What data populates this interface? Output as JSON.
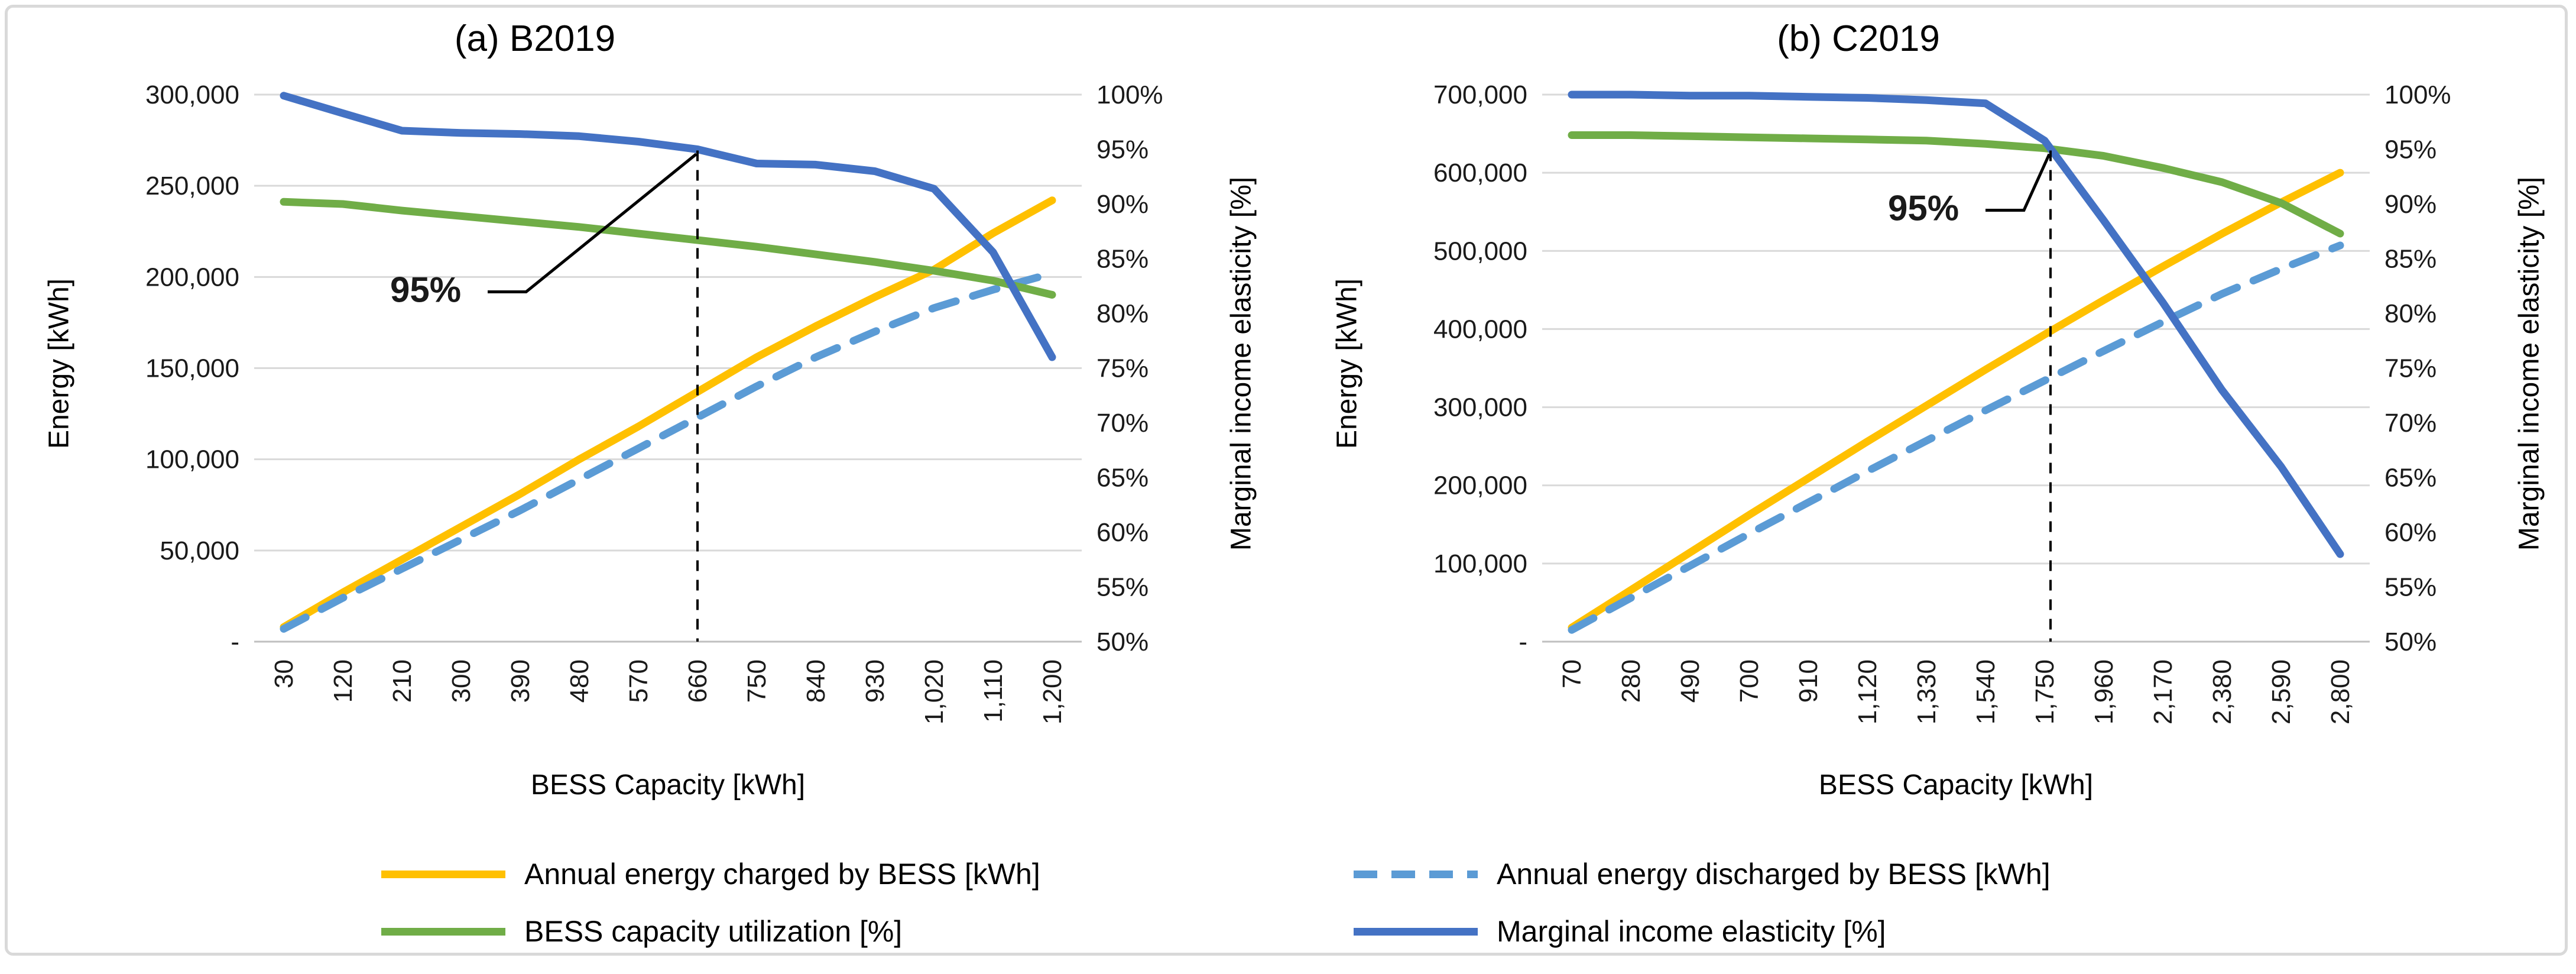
{
  "figure": {
    "background": "#FFFFFF",
    "border_color": "#D9D9D9",
    "gridline_color": "#D9D9D9",
    "axis_line_color": "#BFBFBF"
  },
  "legend": {
    "items": [
      {
        "label": "Annual energy charged by BESS [kWh]",
        "color": "#FFC000",
        "dash": false
      },
      {
        "label": "Annual energy discharged by BESS [kWh]",
        "color": "#5B9BD5",
        "dash": true
      },
      {
        "label": "BESS capacity utilization [%]",
        "color": "#70AD47",
        "dash": false
      },
      {
        "label": "Marginal income elasticity [%]",
        "color": "#4472C4",
        "dash": false
      }
    ]
  },
  "chart_data": [
    {
      "type": "line",
      "title": "(a) B2019",
      "xlabel": "BESS Capacity [kWh]",
      "ylabel_left": "Energy [kWh]",
      "ylabel_right": "Marginal income elasticity [%]",
      "x_categories": [
        30,
        120,
        210,
        300,
        390,
        480,
        570,
        660,
        750,
        840,
        930,
        1020,
        1110,
        1200
      ],
      "x_tick_labels": [
        "30",
        "120",
        "210",
        "300",
        "390",
        "480",
        "570",
        "660",
        "750",
        "840",
        "930",
        "1,020",
        "1,110",
        "1,200"
      ],
      "ylim_left": [
        0,
        300000
      ],
      "yticks_left": [
        "300,000",
        "250,000",
        "200,000",
        "150,000",
        "100,000",
        "50,000",
        "-"
      ],
      "ylim_right": [
        50,
        100
      ],
      "yticks_right": [
        "100%",
        "95%",
        "90%",
        "85%",
        "80%",
        "75%",
        "70%",
        "65%",
        "60%",
        "55%",
        "50%"
      ],
      "grid": true,
      "legend_position": "bottom-shared",
      "series": [
        {
          "name": "Annual energy charged by BESS [kWh]",
          "axis": "left",
          "color": "#FFC000",
          "dash": false,
          "values": [
            8000,
            27000,
            45000,
            63000,
            81000,
            100000,
            118000,
            137000,
            156000,
            173000,
            189000,
            204000,
            224000,
            242000
          ]
        },
        {
          "name": "Annual energy discharged by BESS [kWh]",
          "axis": "left",
          "color": "#5B9BD5",
          "dash": true,
          "values": [
            7000,
            24000,
            40000,
            56000,
            72000,
            89000,
            106000,
            123000,
            140000,
            156000,
            170000,
            183000,
            193000,
            202000
          ]
        },
        {
          "name": "BESS capacity utilization [%]",
          "axis": "right",
          "color": "#70AD47",
          "dash": false,
          "values": [
            90.2,
            90.0,
            89.4,
            88.9,
            88.4,
            87.9,
            87.3,
            86.7,
            86.1,
            85.4,
            84.7,
            83.9,
            83.0,
            81.7
          ]
        },
        {
          "name": "Marginal income elasticity [%]",
          "axis": "right",
          "color": "#4472C4",
          "dash": false,
          "values": [
            99.9,
            98.3,
            96.7,
            96.5,
            96.4,
            96.2,
            95.7,
            95.0,
            93.7,
            93.6,
            93.0,
            91.4,
            85.6,
            76.0
          ]
        }
      ],
      "annotation": {
        "label": "95%",
        "x_index": 7,
        "value_right": 95,
        "label_offset": [
          -460,
          258
        ]
      }
    },
    {
      "type": "line",
      "title": "(b) C2019",
      "xlabel": "BESS Capacity [kWh]",
      "ylabel_left": "Energy [kWh]",
      "ylabel_right": "Marginal income elasticity [%]",
      "x_categories": [
        70,
        280,
        490,
        700,
        910,
        1120,
        1330,
        1540,
        1750,
        1960,
        2170,
        2380,
        2590,
        2800
      ],
      "x_tick_labels": [
        "70",
        "280",
        "490",
        "700",
        "910",
        "1,120",
        "1,330",
        "1,540",
        "1,750",
        "1,960",
        "2,170",
        "2,380",
        "2,590",
        "2,800"
      ],
      "ylim_left": [
        0,
        700000
      ],
      "yticks_left": [
        "700,000",
        "600,000",
        "500,000",
        "400,000",
        "300,000",
        "200,000",
        "100,000",
        "-"
      ],
      "ylim_right": [
        50,
        100
      ],
      "yticks_right": [
        "100%",
        "95%",
        "90%",
        "85%",
        "80%",
        "75%",
        "70%",
        "65%",
        "60%",
        "55%",
        "50%"
      ],
      "grid": true,
      "legend_position": "bottom-shared",
      "series": [
        {
          "name": "Annual energy charged by BESS [kWh]",
          "axis": "left",
          "color": "#FFC000",
          "dash": false,
          "values": [
            18000,
            66000,
            114000,
            162000,
            209000,
            256000,
            302000,
            348000,
            393000,
            437000,
            480000,
            522000,
            562000,
            600000
          ]
        },
        {
          "name": "Annual energy discharged by BESS [kWh]",
          "axis": "left",
          "color": "#5B9BD5",
          "dash": true,
          "values": [
            15000,
            56000,
            97000,
            138000,
            178000,
            218000,
            257000,
            296000,
            334000,
            372000,
            409000,
            445000,
            477000,
            507000
          ]
        },
        {
          "name": "BESS capacity utilization [%]",
          "axis": "right",
          "color": "#70AD47",
          "dash": false,
          "values": [
            96.3,
            96.3,
            96.2,
            96.1,
            96.0,
            95.9,
            95.8,
            95.5,
            95.1,
            94.4,
            93.3,
            92.0,
            90.1,
            87.3
          ]
        },
        {
          "name": "Marginal income elasticity [%]",
          "axis": "right",
          "color": "#4472C4",
          "dash": false,
          "values": [
            100,
            100,
            99.9,
            99.9,
            99.8,
            99.7,
            99.5,
            99.2,
            95.8,
            88.5,
            81.0,
            73.0,
            66.0,
            58.0
          ]
        }
      ],
      "annotation": {
        "label": "95%",
        "x_index": 8.1,
        "value_right": 95,
        "label_offset": [
          -215,
          120
        ]
      }
    }
  ]
}
